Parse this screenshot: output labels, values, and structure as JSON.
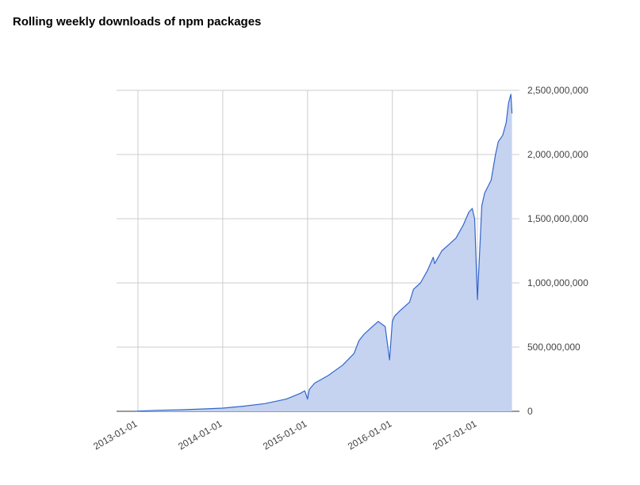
{
  "chart_data": {
    "type": "area",
    "title": "Rolling weekly downloads of npm packages",
    "xlabel": "",
    "ylabel": "",
    "x_ticks": [
      "2013-01-01",
      "2014-01-01",
      "2015-01-01",
      "2016-01-01",
      "2017-01-01"
    ],
    "x_range": [
      "2012-10-01",
      "2017-07-01"
    ],
    "y_ticks": [
      "0",
      "500,000,000",
      "1,000,000,000",
      "1,500,000,000",
      "2,000,000,000",
      "2,500,000,000"
    ],
    "ylim": [
      0,
      2500000000
    ],
    "y_axis_position": "right",
    "grid": true,
    "legend": "none",
    "colors": {
      "line": "#3366cc",
      "fill": "#c5d3f1",
      "grid": "#cccccc",
      "baseline": "#333333"
    },
    "x": [
      "2012-12-20",
      "2013-01-01",
      "2013-04-01",
      "2013-07-01",
      "2013-10-01",
      "2014-01-01",
      "2014-04-01",
      "2014-07-01",
      "2014-10-01",
      "2014-12-01",
      "2014-12-20",
      "2015-01-01",
      "2015-01-08",
      "2015-02-01",
      "2015-04-01",
      "2015-06-01",
      "2015-07-20",
      "2015-08-10",
      "2015-09-01",
      "2015-10-01",
      "2015-11-01",
      "2015-12-01",
      "2015-12-20",
      "2016-01-01",
      "2016-01-10",
      "2016-02-01",
      "2016-03-15",
      "2016-04-01",
      "2016-05-01",
      "2016-06-01",
      "2016-06-25",
      "2016-07-01",
      "2016-08-01",
      "2016-09-01",
      "2016-10-01",
      "2016-11-01",
      "2016-11-25",
      "2016-12-10",
      "2016-12-20",
      "2017-01-01",
      "2017-01-20",
      "2017-02-01",
      "2017-03-01",
      "2017-03-20",
      "2017-04-01",
      "2017-04-20",
      "2017-05-05",
      "2017-05-15",
      "2017-05-25",
      "2017-05-30"
    ],
    "values": [
      0,
      2000000,
      8000000,
      12000000,
      18000000,
      25000000,
      40000000,
      60000000,
      95000000,
      140000000,
      160000000,
      95000000,
      170000000,
      220000000,
      280000000,
      360000000,
      450000000,
      550000000,
      600000000,
      650000000,
      700000000,
      660000000,
      400000000,
      700000000,
      740000000,
      780000000,
      850000000,
      950000000,
      1000000000,
      1100000000,
      1200000000,
      1150000000,
      1250000000,
      1300000000,
      1350000000,
      1450000000,
      1550000000,
      1580000000,
      1500000000,
      870000000,
      1600000000,
      1700000000,
      1800000000,
      2000000000,
      2100000000,
      2150000000,
      2250000000,
      2400000000,
      2470000000,
      2320000000
    ]
  }
}
